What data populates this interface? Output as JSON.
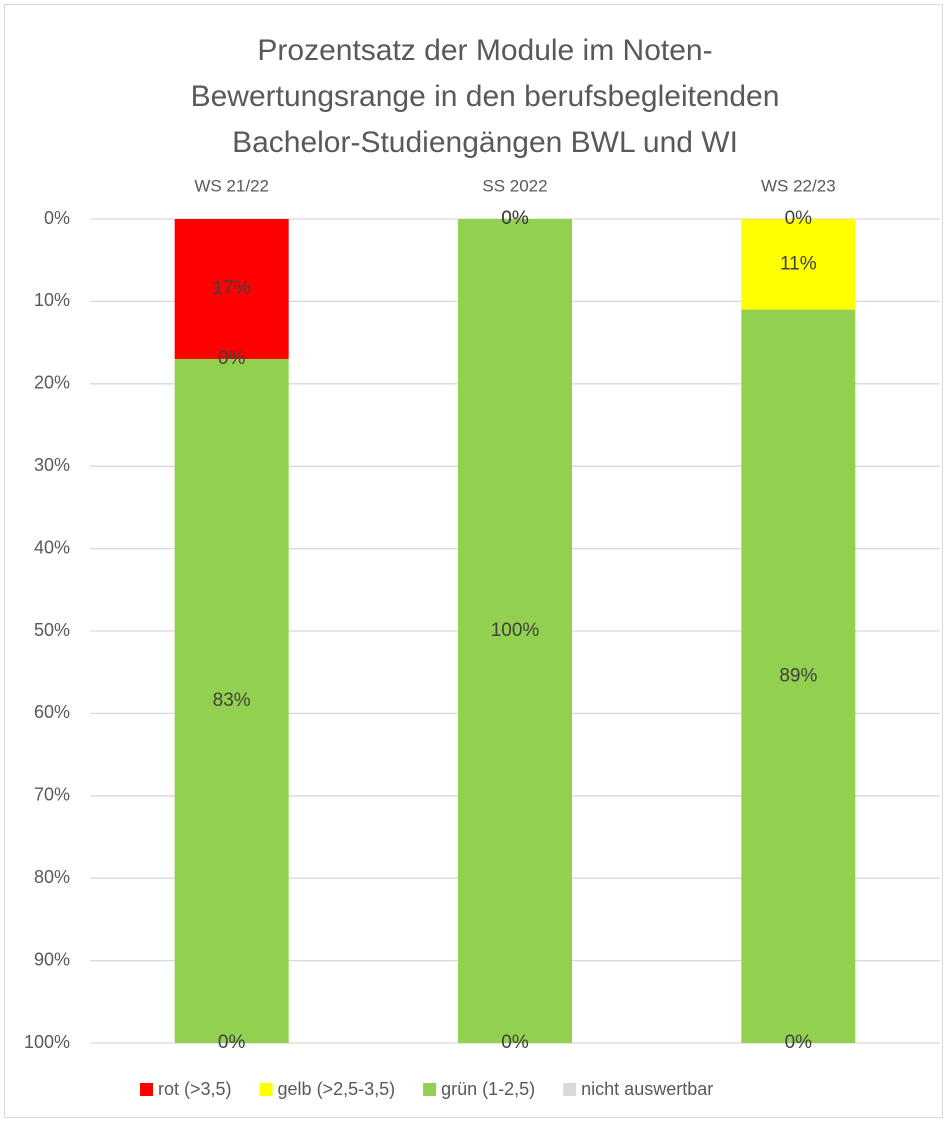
{
  "chart_data": {
    "type": "stacked_bar",
    "title": "Prozentsatz der Module im Noten-Bewertungsrange in den berufsbegleitenden Bachelor-Studiengängen BWL und WI",
    "categories": [
      "WS 21/22",
      "SS 2022",
      "WS 22/23"
    ],
    "series": [
      {
        "name": "rot (>3,5)",
        "color": "#ff0000",
        "values": [
          17,
          0,
          0
        ],
        "value_labels": [
          "17%",
          "0%",
          "0%"
        ]
      },
      {
        "name": "gelb (>2,5-3,5)",
        "color": "#ffff00",
        "values": [
          0,
          0,
          11
        ],
        "value_labels": [
          "0%",
          "0%",
          "11%"
        ]
      },
      {
        "name": "grün (1-2,5)",
        "color": "#92d050",
        "values": [
          83,
          100,
          89
        ],
        "value_labels": [
          "83%",
          "100%",
          "89%"
        ]
      },
      {
        "name": "nicht auswertbar",
        "color": "#d9d9d9",
        "values": [
          0,
          0,
          0
        ],
        "value_labels": [
          "0%",
          "0%",
          "0%"
        ]
      }
    ],
    "ylim": [
      0,
      100
    ],
    "y_reversed": true,
    "x_axis_position": "top",
    "yticks": [
      {
        "value": 0,
        "label": "0%"
      },
      {
        "value": 10,
        "label": "10%"
      },
      {
        "value": 20,
        "label": "20%"
      },
      {
        "value": 30,
        "label": "30%"
      },
      {
        "value": 40,
        "label": "40%"
      },
      {
        "value": 50,
        "label": "50%"
      },
      {
        "value": 60,
        "label": "60%"
      },
      {
        "value": 70,
        "label": "70%"
      },
      {
        "value": 80,
        "label": "80%"
      },
      {
        "value": 90,
        "label": "90%"
      },
      {
        "value": 100,
        "label": "100%"
      }
    ],
    "grid": true,
    "legend": "bottom"
  }
}
